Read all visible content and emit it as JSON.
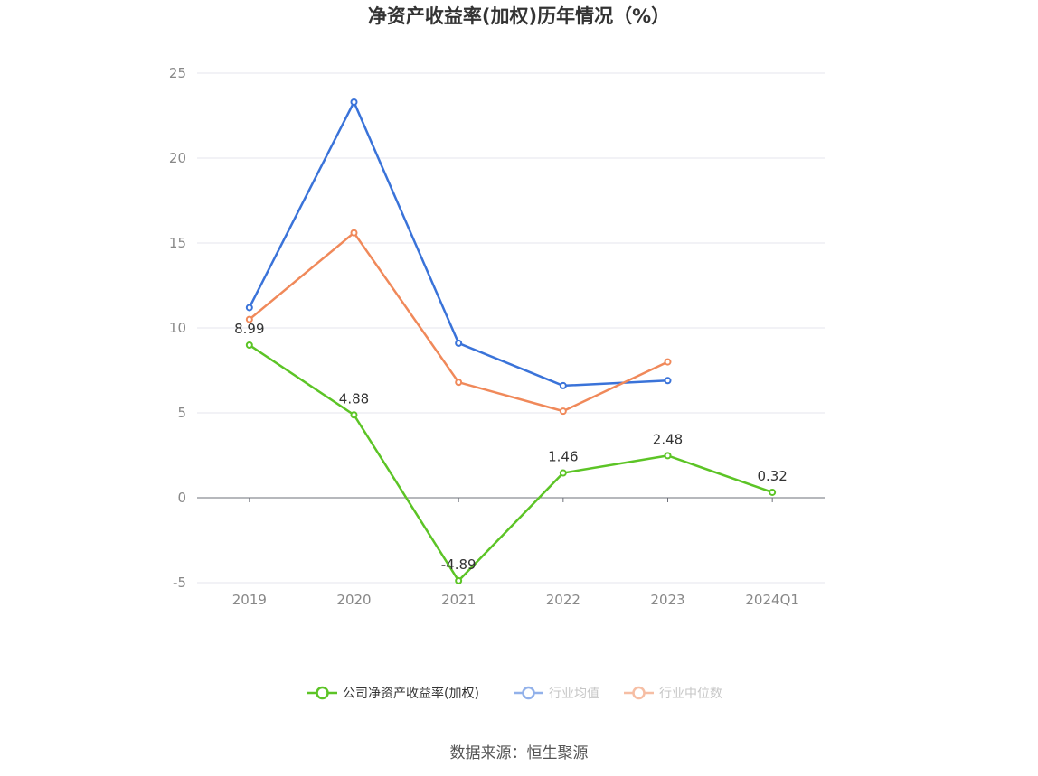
{
  "chart_data": {
    "type": "line",
    "title": "净资产收益率(加权)历年情况（%）",
    "categories": [
      "2019",
      "2020",
      "2021",
      "2022",
      "2023",
      "2024Q1"
    ],
    "ylim": [
      -5,
      25
    ],
    "yticks": [
      25,
      20,
      15,
      10,
      5,
      0,
      -5
    ],
    "grid": true,
    "legend_position": "bottom",
    "series": [
      {
        "name": "公司净资产收益率(加权)",
        "color": "#5cc426",
        "values": [
          8.99,
          4.88,
          -4.89,
          1.46,
          2.48,
          0.32
        ],
        "labels": [
          "8.99",
          "4.88",
          "-4.89",
          "1.46",
          "2.48",
          "0.32"
        ]
      },
      {
        "name": "行业均值",
        "color": "#3a73d9",
        "values": [
          11.2,
          23.3,
          9.1,
          6.6,
          6.9,
          null
        ]
      },
      {
        "name": "行业中位数",
        "color": "#f0895a",
        "values": [
          10.5,
          15.6,
          6.8,
          5.1,
          8.0,
          null
        ]
      }
    ],
    "source": "数据来源：恒生聚源"
  }
}
